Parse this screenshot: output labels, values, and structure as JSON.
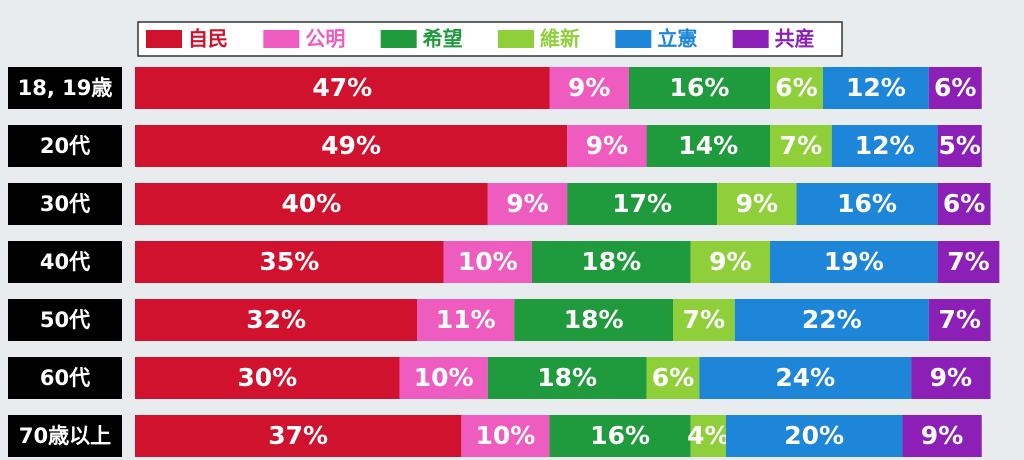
{
  "chart_data": {
    "type": "stacked-bar",
    "categories": [
      "18, 19歳",
      "20代",
      "30代",
      "40代",
      "50代",
      "60代",
      "70歳以上"
    ],
    "series": [
      {
        "name": "自民",
        "color": "#d0122e",
        "values": [
          47,
          49,
          40,
          35,
          32,
          30,
          37
        ],
        "value_labels": [
          "47%",
          "49%",
          "40%",
          "35%",
          "32%",
          "30%",
          "37%"
        ]
      },
      {
        "name": "公明",
        "color": "#ee5cc0",
        "values": [
          9,
          9,
          9,
          10,
          11,
          10,
          10
        ],
        "value_labels": [
          "9%",
          "9%",
          "9%",
          "10%",
          "11%",
          "10%",
          "10%"
        ]
      },
      {
        "name": "希望",
        "color": "#1f9a3c",
        "values": [
          16,
          14,
          17,
          18,
          18,
          18,
          16
        ],
        "value_labels": [
          "16%",
          "14%",
          "17%",
          "18%",
          "18%",
          "18%",
          "16%"
        ]
      },
      {
        "name": "維新",
        "color": "#8fd03a",
        "values": [
          6,
          7,
          9,
          9,
          7,
          6,
          4
        ],
        "value_labels": [
          "6%",
          "7%",
          "9%",
          "9%",
          "7%",
          "6%",
          "4%"
        ]
      },
      {
        "name": "立憲",
        "color": "#1e86d8",
        "values": [
          12,
          12,
          16,
          19,
          22,
          24,
          20
        ],
        "value_labels": [
          "12%",
          "12%",
          "16%",
          "19%",
          "22%",
          "24%",
          "20%"
        ]
      },
      {
        "name": "共産",
        "color": "#8b1fb6",
        "values": [
          6,
          5,
          6,
          7,
          7,
          9,
          9
        ],
        "value_labels": [
          "6%",
          "5%",
          "6%",
          "7%",
          "7%",
          "9%",
          "9%"
        ]
      }
    ]
  }
}
